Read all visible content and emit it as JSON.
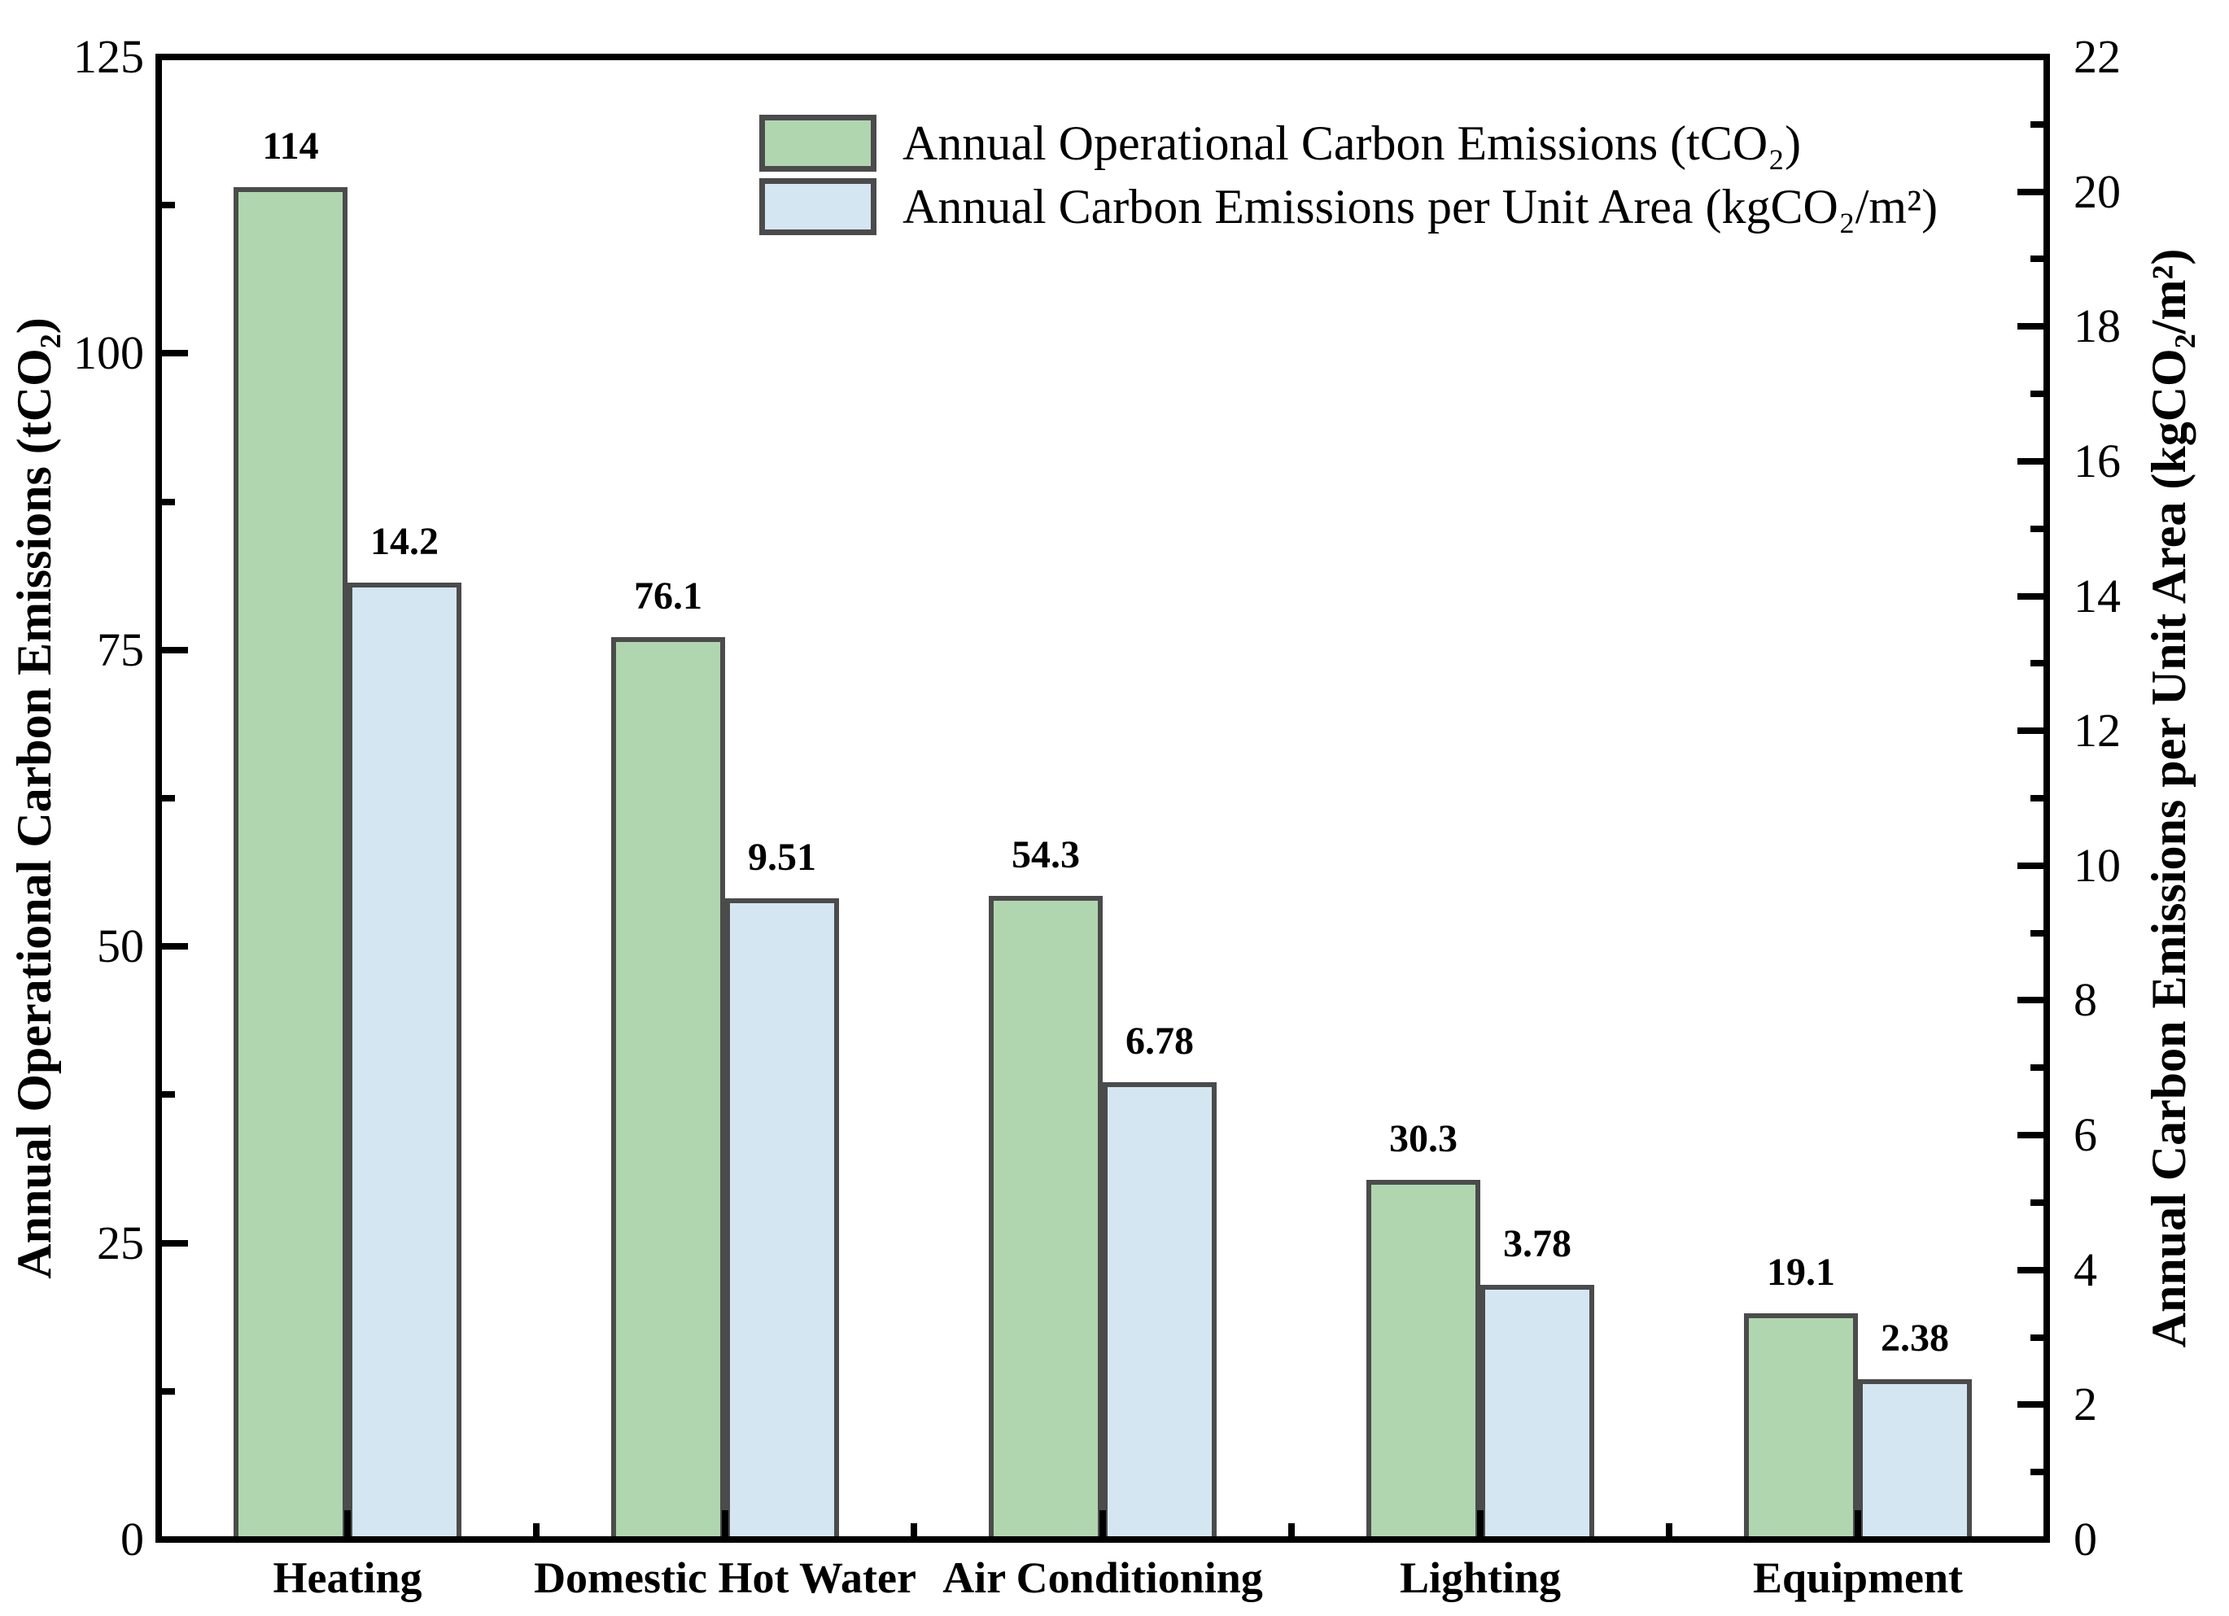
{
  "chart_data": {
    "type": "bar",
    "title": "",
    "categories": [
      "Heating",
      "Domestic Hot Water",
      "Air Conditioning",
      "Lighting",
      "Equipment"
    ],
    "series": [
      {
        "name": "Annual Operational Carbon Emissions (tCO₂)",
        "axis": "left",
        "color": "#b0d6b0",
        "values": [
          114,
          76.1,
          54.3,
          30.3,
          19.1
        ],
        "labels": [
          "114",
          "76.1",
          "54.3",
          "30.3",
          "19.1"
        ]
      },
      {
        "name": "Annual Carbon Emissions per Unit Area (kgCO₂/m²)",
        "axis": "right",
        "color": "#d4e6f2",
        "values": [
          14.2,
          9.51,
          6.78,
          3.78,
          2.38
        ],
        "labels": [
          "14.2",
          "9.51",
          "6.78",
          "3.78",
          "2.38"
        ]
      }
    ],
    "left_axis": {
      "label": "Annual Operational Carbon Emissions (tCO₂)",
      "min": 0,
      "max": 125,
      "major_step": 25,
      "minor_step": 12.5,
      "tick_labels": [
        "0",
        "25",
        "50",
        "75",
        "100",
        "125"
      ]
    },
    "right_axis": {
      "label": "Annual Carbon Emissions per Unit Area (kgCO₂/m²)",
      "min": 0,
      "max": 22,
      "major_step": 2,
      "minor_step": 1,
      "tick_labels": [
        "0",
        "2",
        "4",
        "6",
        "8",
        "10",
        "12",
        "14",
        "16",
        "18",
        "20",
        "22"
      ]
    },
    "legend_position": "top-center",
    "grid": false,
    "bar_border_color": "#4b4b4b",
    "axis_color": "#000000"
  }
}
